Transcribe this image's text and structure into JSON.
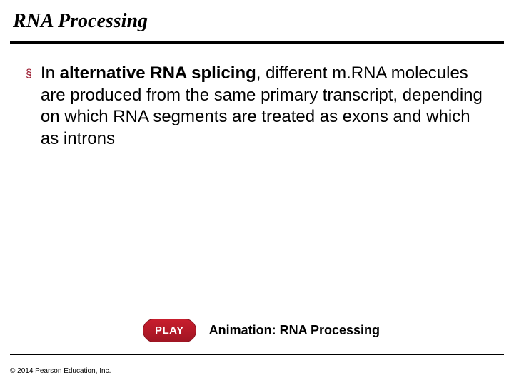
{
  "title": "RNA Processing",
  "bullet": {
    "pre": "In ",
    "bold": "alternative RNA splicing",
    "post": ", different m.RNA molecules are produced from the same primary transcript, depending on which RNA segments are treated as exons and which as introns"
  },
  "play": {
    "button_label": "PLAY",
    "caption": "Animation: RNA Processing"
  },
  "copyright": "© 2014 Pearson Education, Inc.",
  "colors": {
    "accent": "#9b1b30",
    "play_bg_top": "#c81e2d",
    "play_bg_bottom": "#a01523",
    "text": "#000000",
    "background": "#ffffff"
  },
  "typography": {
    "title_fontsize": 28,
    "title_family": "Times New Roman",
    "title_style": "italic bold",
    "body_fontsize": 24,
    "body_family": "Arial",
    "play_label_fontsize": 18,
    "copyright_fontsize": 10
  }
}
